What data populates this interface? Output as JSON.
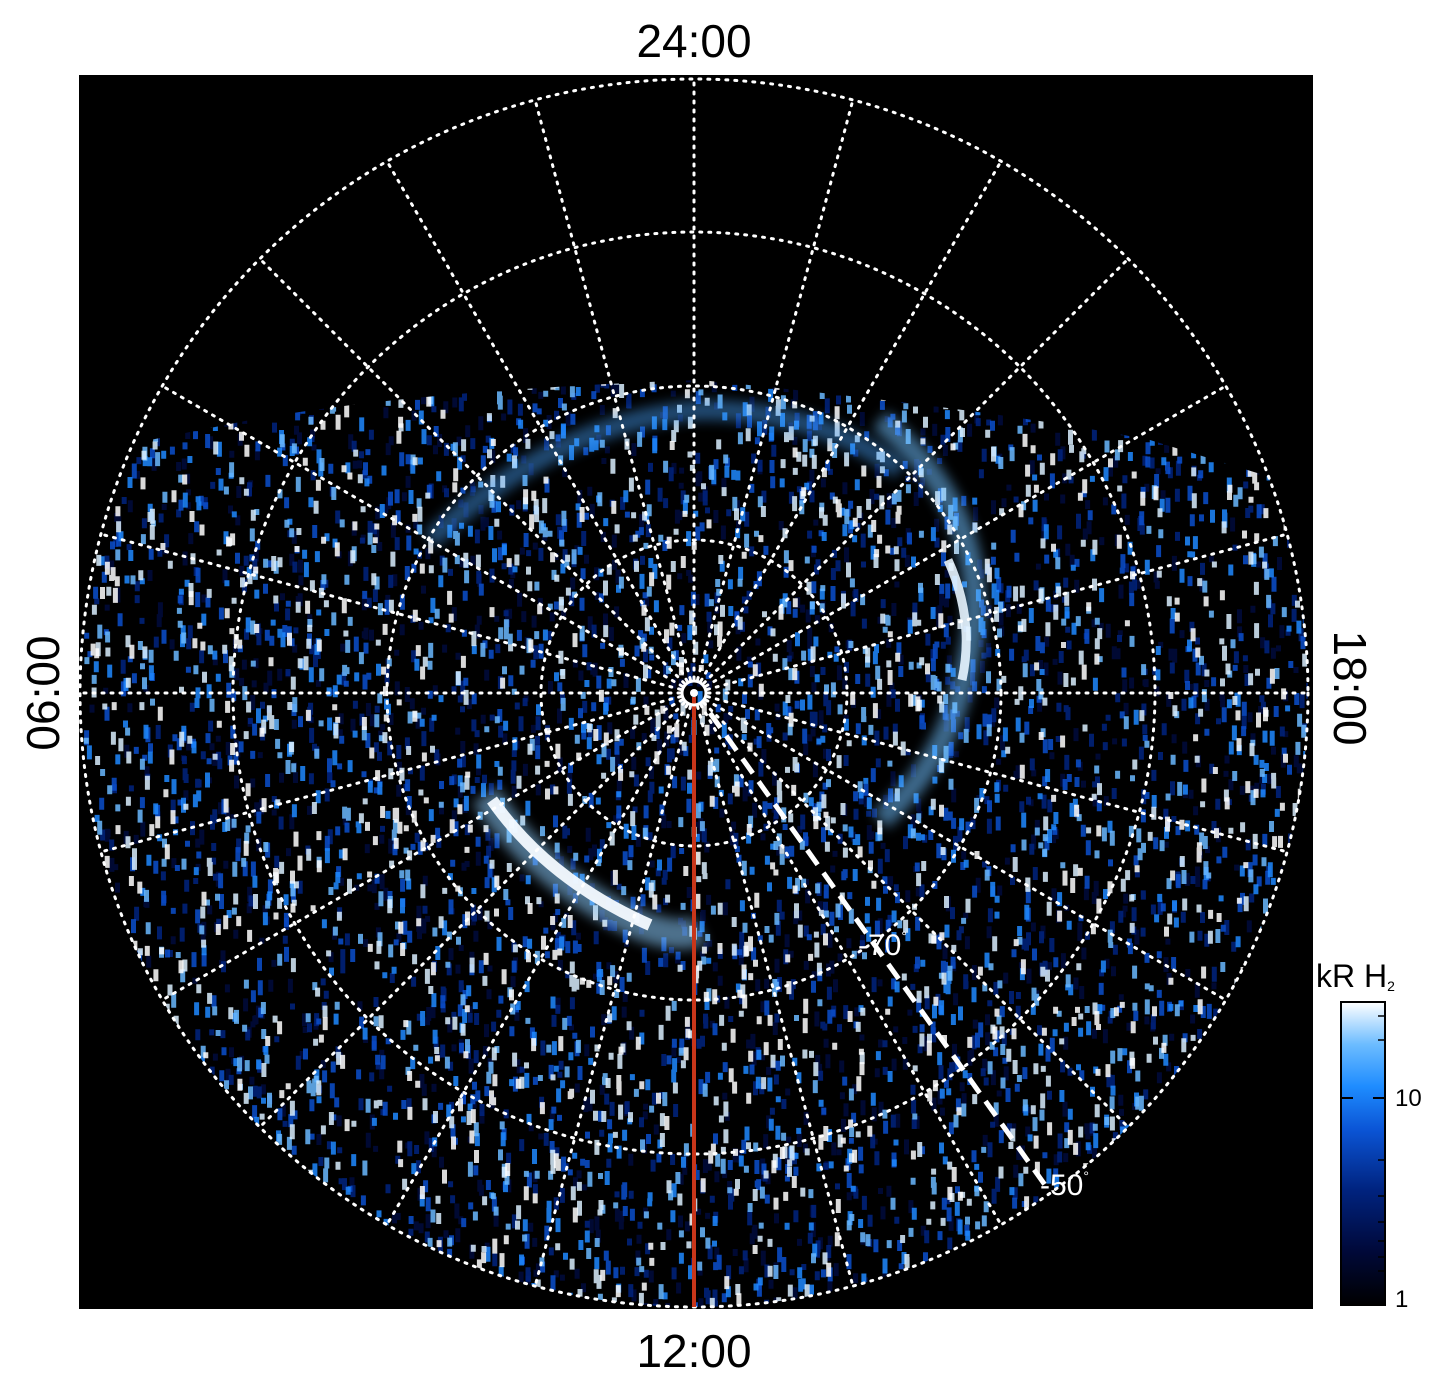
{
  "local_time_labels": {
    "top": "24:00",
    "bottom": "12:00",
    "left": "06:00",
    "right": "18:00"
  },
  "colorbar": {
    "title": "kR H",
    "title_subscript": "2",
    "ticks": [
      "10",
      "1"
    ]
  },
  "latitude_labels": [
    {
      "text": "-70",
      "unit": "°"
    },
    {
      "text": "-50",
      "unit": "°"
    }
  ],
  "colors": {
    "background": "#000000",
    "grid": "#ffffff",
    "meridian_line": "#c8361a",
    "colormap": [
      "#000000",
      "#000a3c",
      "#00237f",
      "#0b4fcc",
      "#1e88ff",
      "#6ab9ff",
      "#d9eeff",
      "#ffffff"
    ]
  },
  "plot": {
    "projection": "polar",
    "hemisphere": "south",
    "grid": true,
    "colorscale": "log",
    "colorbar_range": [
      1,
      20
    ]
  }
}
